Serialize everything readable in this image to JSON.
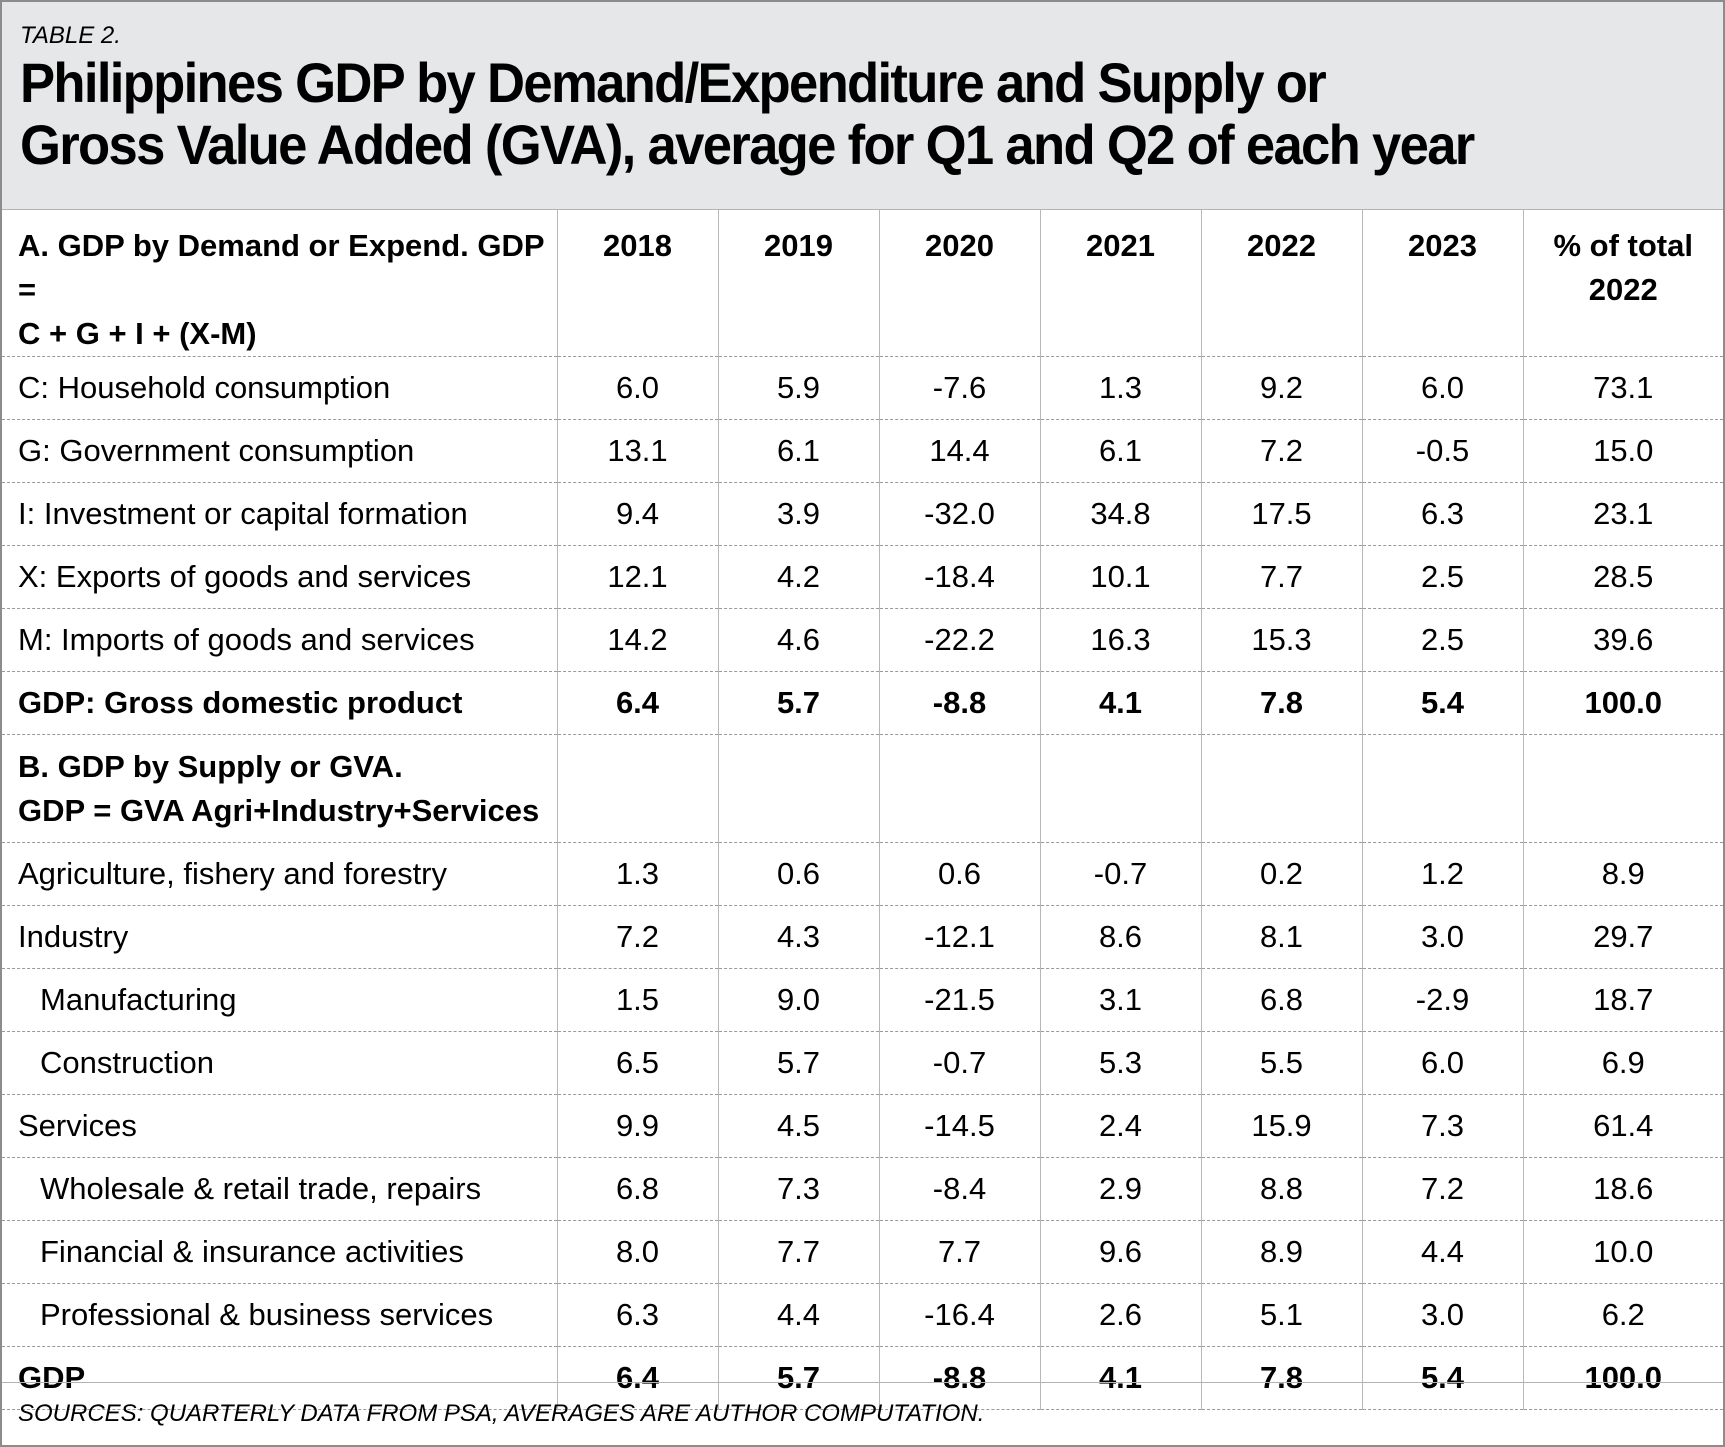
{
  "chart_data": {
    "type": "table",
    "table_label": "TABLE 2.",
    "title": "Philippines GDP by Demand/Expenditure and Supply or Gross Value Added (GVA), average for Q1 and Q2 of each year",
    "title_lines": [
      "Philippines GDP by Demand/Expenditure and Supply or",
      "Gross Value Added (GVA), average for Q1 and Q2 of each year"
    ],
    "header_label_lines": [
      "A. GDP by Demand or Expend. GDP =",
      "C + G + I + (X-M)"
    ],
    "columns": [
      "2018",
      "2019",
      "2020",
      "2021",
      "2022",
      "2023",
      "% of total 2022"
    ],
    "columns_lines": [
      [
        "2018"
      ],
      [
        "2019"
      ],
      [
        "2020"
      ],
      [
        "2021"
      ],
      [
        "2022"
      ],
      [
        "2023"
      ],
      [
        "% of total",
        "2022"
      ]
    ],
    "rows": [
      {
        "label": "C: Household consumption",
        "values": [
          "6.0",
          "5.9",
          "-7.6",
          "1.3",
          "9.2",
          "6.0",
          "73.1"
        ]
      },
      {
        "label": "G: Government consumption",
        "values": [
          "13.1",
          "6.1",
          "14.4",
          "6.1",
          "7.2",
          "-0.5",
          "15.0"
        ]
      },
      {
        "label": "I: Investment or capital formation",
        "values": [
          "9.4",
          "3.9",
          "-32.0",
          "34.8",
          "17.5",
          "6.3",
          "23.1"
        ]
      },
      {
        "label": "X: Exports of goods and services",
        "values": [
          "12.1",
          "4.2",
          "-18.4",
          "10.1",
          "7.7",
          "2.5",
          "28.5"
        ]
      },
      {
        "label": "M: Imports of goods and services",
        "values": [
          "14.2",
          "4.6",
          "-22.2",
          "16.3",
          "15.3",
          "2.5",
          "39.6"
        ]
      },
      {
        "label": "GDP: Gross domestic product",
        "values": [
          "6.4",
          "5.7",
          "-8.8",
          "4.1",
          "7.8",
          "5.4",
          "100.0"
        ],
        "bold": true
      },
      {
        "section": true,
        "label_lines": [
          "B. GDP by Supply or GVA.",
          "GDP = GVA Agri+Industry+Services"
        ]
      },
      {
        "label": "Agriculture, fishery and forestry",
        "values": [
          "1.3",
          "0.6",
          "0.6",
          "-0.7",
          "0.2",
          "1.2",
          "8.9"
        ]
      },
      {
        "label": "Industry",
        "values": [
          "7.2",
          "4.3",
          "-12.1",
          "8.6",
          "8.1",
          "3.0",
          "29.7"
        ]
      },
      {
        "label": "Manufacturing",
        "values": [
          "1.5",
          "9.0",
          "-21.5",
          "3.1",
          "6.8",
          "-2.9",
          "18.7"
        ],
        "indent": true
      },
      {
        "label": "Construction",
        "values": [
          "6.5",
          "5.7",
          "-0.7",
          "5.3",
          "5.5",
          "6.0",
          "6.9"
        ],
        "indent": true
      },
      {
        "label": "Services",
        "values": [
          "9.9",
          "4.5",
          "-14.5",
          "2.4",
          "15.9",
          "7.3",
          "61.4"
        ]
      },
      {
        "label": "Wholesale & retail trade, repairs",
        "values": [
          "6.8",
          "7.3",
          "-8.4",
          "2.9",
          "8.8",
          "7.2",
          "18.6"
        ],
        "indent": true
      },
      {
        "label": "Financial & insurance activities",
        "values": [
          "8.0",
          "7.7",
          "7.7",
          "9.6",
          "8.9",
          "4.4",
          "10.0"
        ],
        "indent": true
      },
      {
        "label": "Professional & business services",
        "values": [
          "6.3",
          "4.4",
          "-16.4",
          "2.6",
          "5.1",
          "3.0",
          "6.2"
        ],
        "indent": true
      },
      {
        "label": "GDP",
        "values": [
          "6.4",
          "5.7",
          "-8.8",
          "4.1",
          "7.8",
          "5.4",
          "100.0"
        ],
        "bold": true
      }
    ],
    "source": "SOURCES: QUARTERLY DATA FROM PSA, AVERAGES ARE AUTHOR COMPUTATION."
  },
  "colors": {
    "header_background": "#e6e7e8",
    "text": "#000000",
    "outer_border": "#8c8c8c"
  }
}
